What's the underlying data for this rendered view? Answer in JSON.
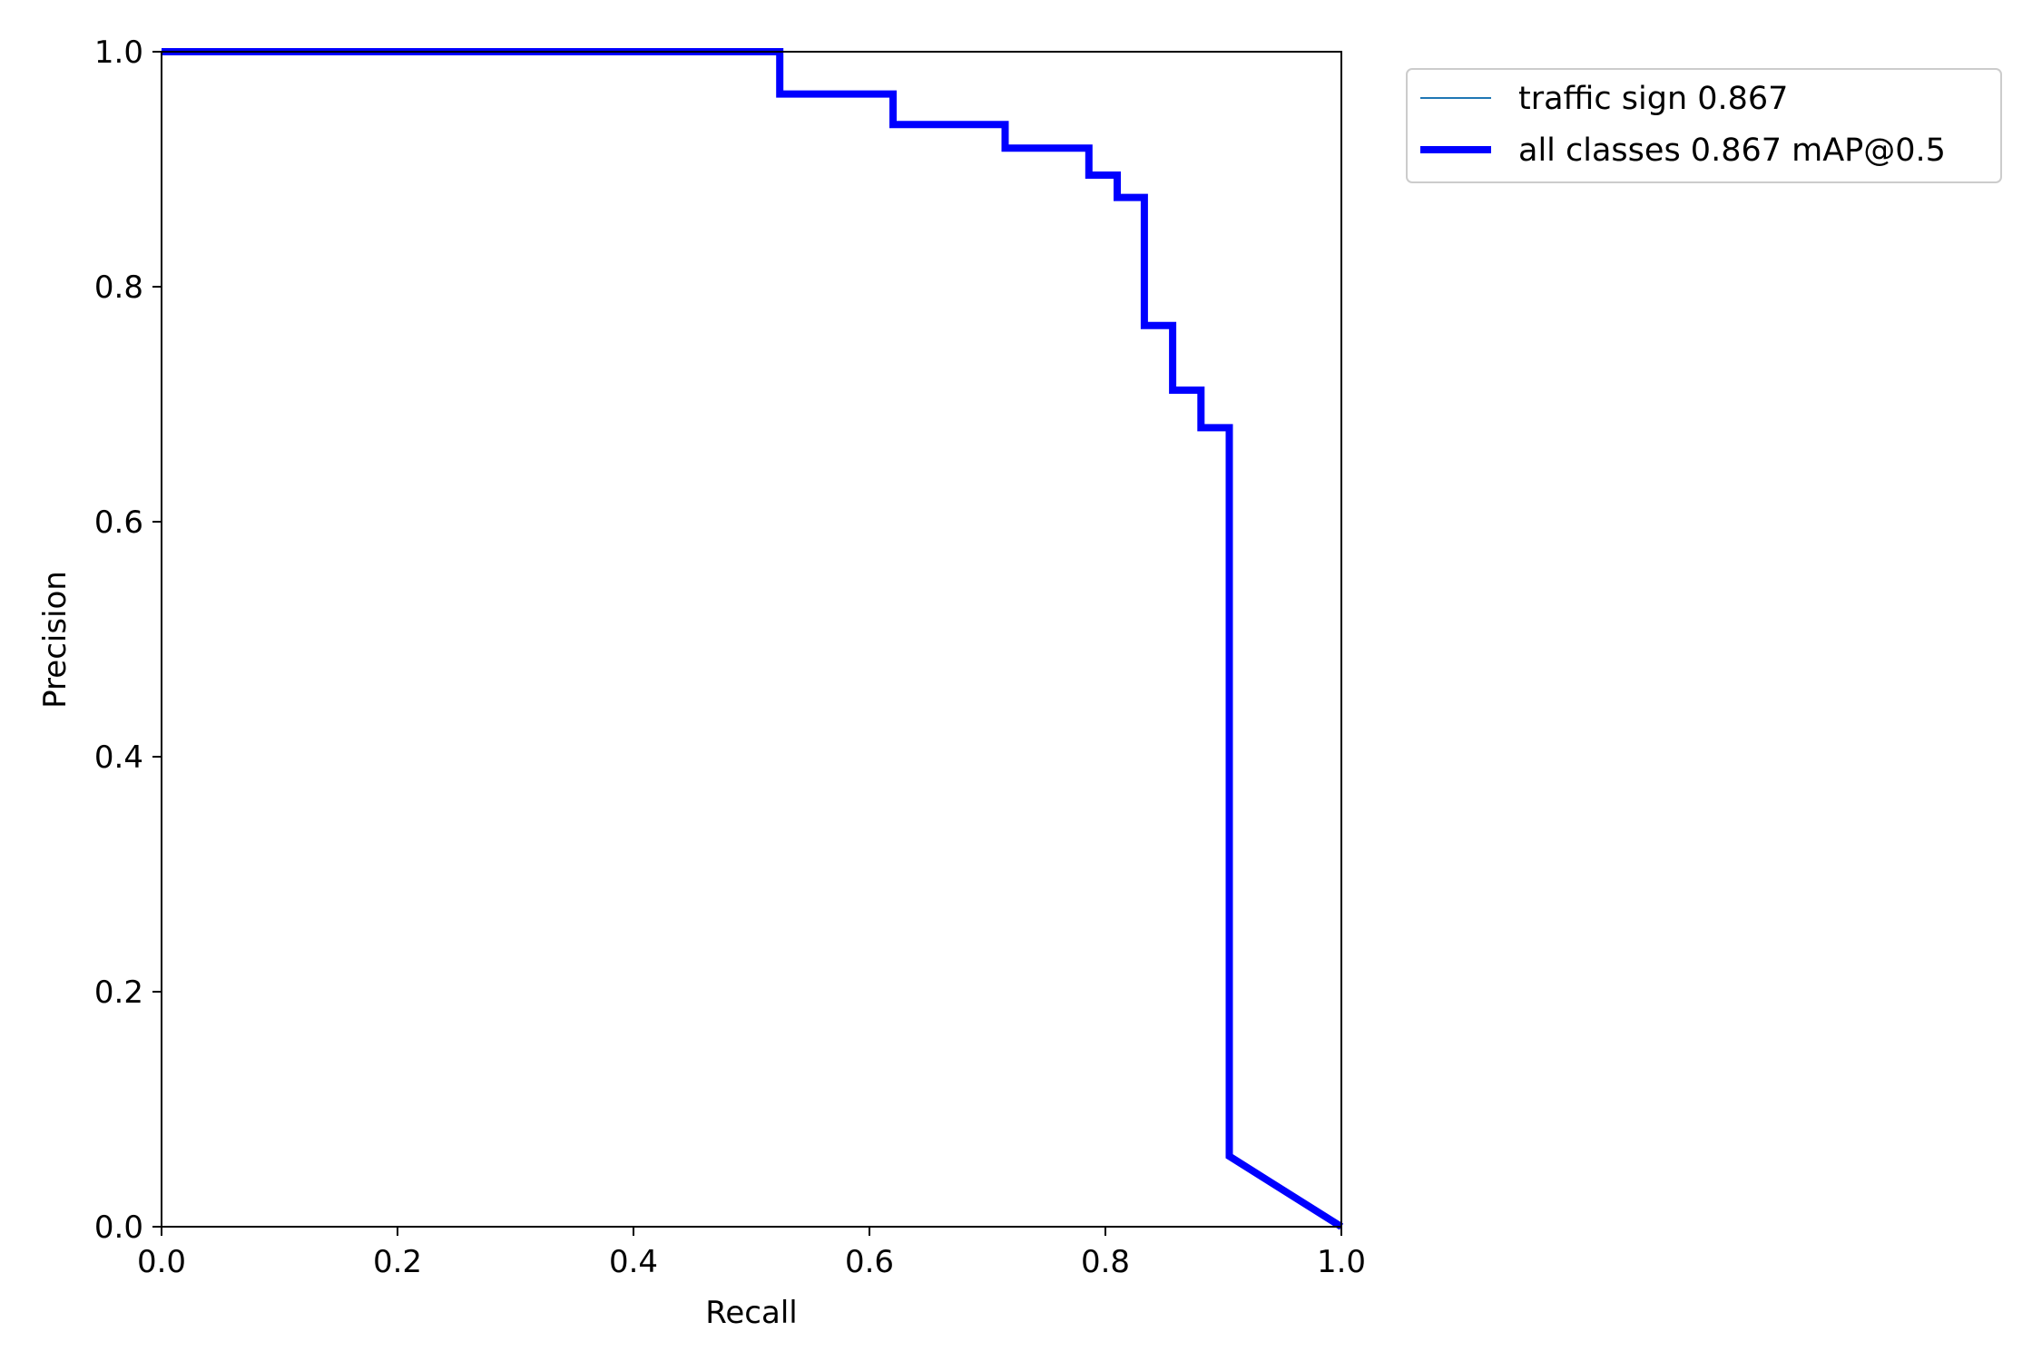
{
  "chart_data": {
    "type": "line",
    "xlabel": "Recall",
    "ylabel": "Precision",
    "xlim": [
      0.0,
      1.0
    ],
    "ylim": [
      0.0,
      1.0
    ],
    "grid": false,
    "legend_position": "outside-top-right",
    "x_ticks": [
      "0.0",
      "0.2",
      "0.4",
      "0.6",
      "0.8",
      "1.0"
    ],
    "y_ticks": [
      "0.0",
      "0.2",
      "0.4",
      "0.6",
      "0.8",
      "1.0"
    ],
    "series": [
      {
        "name": "traffic sign 0.867",
        "color": "#1f77b4",
        "style": "thin",
        "x": [
          0.0,
          0.524,
          0.524,
          0.62,
          0.62,
          0.715,
          0.715,
          0.786,
          0.786,
          0.81,
          0.81,
          0.833,
          0.833,
          0.857,
          0.857,
          0.881,
          0.881,
          0.905,
          0.905,
          1.0
        ],
        "y": [
          1.0,
          1.0,
          0.964,
          0.964,
          0.938,
          0.938,
          0.918,
          0.918,
          0.895,
          0.895,
          0.876,
          0.876,
          0.767,
          0.767,
          0.712,
          0.712,
          0.68,
          0.68,
          0.06,
          0.0
        ]
      },
      {
        "name": "all classes 0.867 mAP@0.5",
        "color": "#0000ff",
        "style": "thick",
        "x": [
          0.0,
          0.524,
          0.524,
          0.62,
          0.62,
          0.715,
          0.715,
          0.786,
          0.786,
          0.81,
          0.81,
          0.833,
          0.833,
          0.857,
          0.857,
          0.881,
          0.881,
          0.905,
          0.905,
          1.0
        ],
        "y": [
          1.0,
          1.0,
          0.964,
          0.964,
          0.938,
          0.938,
          0.918,
          0.918,
          0.895,
          0.895,
          0.876,
          0.876,
          0.767,
          0.767,
          0.712,
          0.712,
          0.68,
          0.68,
          0.06,
          0.0
        ]
      }
    ]
  }
}
